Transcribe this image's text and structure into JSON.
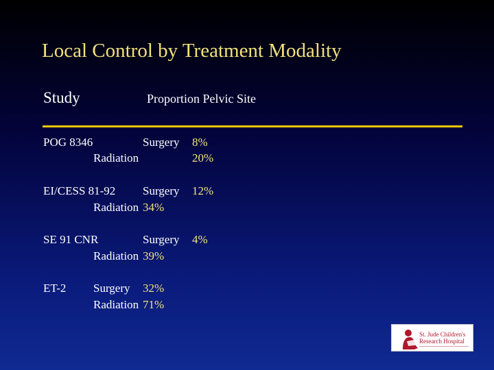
{
  "slide": {
    "title": "Local Control by Treatment Modality",
    "header": {
      "study": "Study",
      "measure": "Proportion Pelvic Site"
    },
    "rows": [
      {
        "study": "POG 8346",
        "surgery_label": "Surgery",
        "surgery_value": "8%",
        "radiation_label": "Radiation",
        "radiation_value": "20%"
      },
      {
        "study": "EI/CESS 81-92",
        "surgery_label": "Surgery",
        "surgery_value": "12%",
        "radiation_label": "Radiation",
        "radiation_value": "34%"
      },
      {
        "study": "SE 91 CNR",
        "surgery_label": "Surgery",
        "surgery_value": "4%",
        "radiation_label": "Radiation",
        "radiation_value": "39%"
      },
      {
        "study": "ET-2",
        "surgery_label": "Surgery",
        "surgery_value": "32%",
        "radiation_label": "Radiation",
        "radiation_value": "71%"
      }
    ]
  },
  "logo": {
    "line1": "St. Jude Children's",
    "line2": "Research Hospital",
    "icon": "child-reading-silhouette-icon",
    "color": "#b0162c"
  },
  "colors": {
    "title": "#f2e27a",
    "rule": "#f0c800",
    "value": "#f2e27a",
    "text": "#ffffff"
  }
}
